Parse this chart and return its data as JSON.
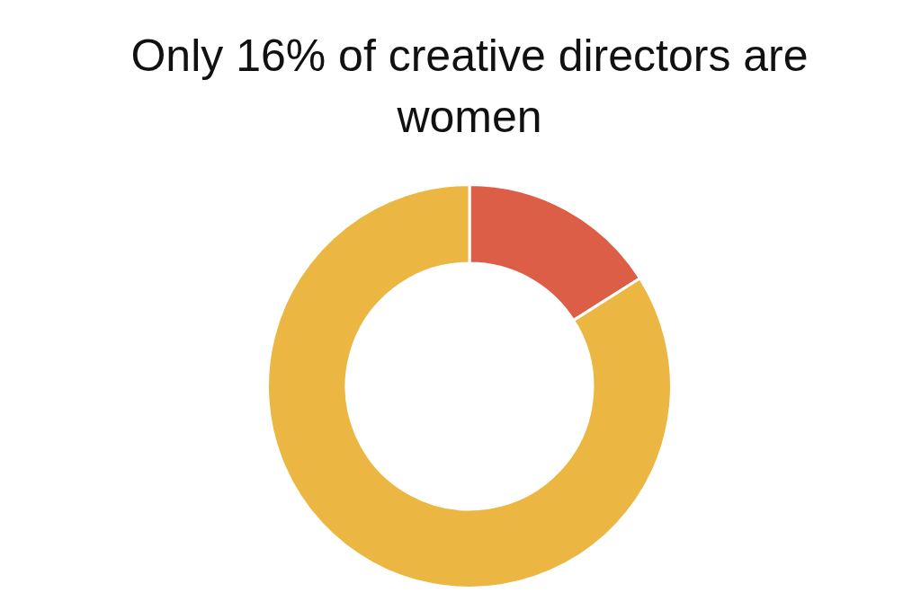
{
  "chart_data": {
    "type": "donut",
    "title": "Only 16% of creative directors are women",
    "categories": [
      null,
      null
    ],
    "values": [
      16,
      84
    ],
    "colors": [
      "#dc5e46",
      "#ebb642"
    ],
    "legend": false
  }
}
